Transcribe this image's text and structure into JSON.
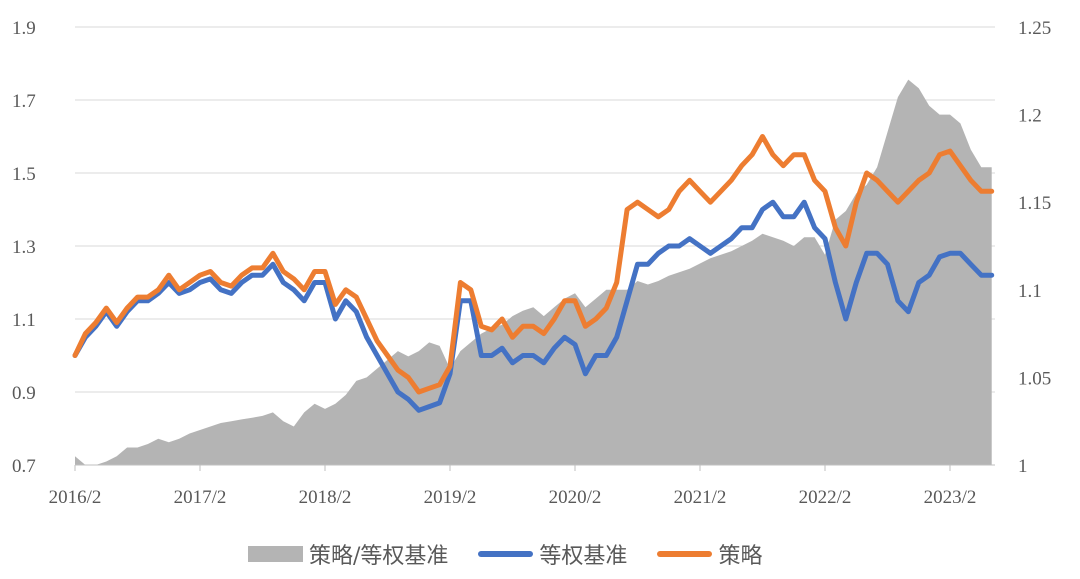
{
  "chart_data": {
    "type": "line",
    "title": "",
    "x_tick_labels": [
      "2016/2",
      "2017/2",
      "2018/2",
      "2019/2",
      "2020/2",
      "2021/2",
      "2022/2",
      "2023/2"
    ],
    "y_left": {
      "ticks": [
        "0.7",
        "0.9",
        "1.1",
        "1.3",
        "1.5",
        "1.7",
        "1.9"
      ],
      "range": [
        0.7,
        1.9
      ]
    },
    "y_right": {
      "ticks": [
        "1",
        "1.05",
        "1.1",
        "1.15",
        "1.2",
        "1.25"
      ],
      "range": [
        1.0,
        1.25
      ]
    },
    "x_start": "2016/2",
    "x_step": "month",
    "grid": "horizontal",
    "legend_position": "bottom",
    "colors": {
      "ratio": "#b4b4b4",
      "benchmark": "#4472c4",
      "strategy": "#ed7d31"
    },
    "series": [
      {
        "name": "策略/等权基准",
        "axis": "right",
        "kind": "area",
        "values": [
          1.005,
          1.0,
          1.0,
          1.002,
          1.005,
          1.01,
          1.01,
          1.012,
          1.015,
          1.013,
          1.015,
          1.018,
          1.02,
          1.022,
          1.024,
          1.025,
          1.026,
          1.027,
          1.028,
          1.03,
          1.025,
          1.022,
          1.03,
          1.035,
          1.032,
          1.035,
          1.04,
          1.048,
          1.05,
          1.055,
          1.06,
          1.065,
          1.062,
          1.065,
          1.07,
          1.068,
          1.055,
          1.065,
          1.07,
          1.075,
          1.078,
          1.08,
          1.085,
          1.088,
          1.09,
          1.085,
          1.09,
          1.095,
          1.098,
          1.09,
          1.095,
          1.1,
          1.1,
          1.1,
          1.105,
          1.103,
          1.105,
          1.108,
          1.11,
          1.112,
          1.115,
          1.118,
          1.12,
          1.122,
          1.125,
          1.128,
          1.132,
          1.13,
          1.128,
          1.125,
          1.13,
          1.13,
          1.12,
          1.14,
          1.145,
          1.155,
          1.16,
          1.17,
          1.19,
          1.21,
          1.22,
          1.215,
          1.205,
          1.2,
          1.2,
          1.195,
          1.18,
          1.17,
          1.17
        ]
      },
      {
        "name": "等权基准",
        "axis": "left",
        "kind": "line",
        "values": [
          1.0,
          1.05,
          1.08,
          1.12,
          1.08,
          1.12,
          1.15,
          1.15,
          1.17,
          1.2,
          1.17,
          1.18,
          1.2,
          1.21,
          1.18,
          1.17,
          1.2,
          1.22,
          1.22,
          1.25,
          1.2,
          1.18,
          1.15,
          1.2,
          1.2,
          1.1,
          1.15,
          1.12,
          1.05,
          1.0,
          0.95,
          0.9,
          0.88,
          0.85,
          0.86,
          0.87,
          0.95,
          1.15,
          1.15,
          1.0,
          1.0,
          1.02,
          0.98,
          1.0,
          1.0,
          0.98,
          1.02,
          1.05,
          1.03,
          0.95,
          1.0,
          1.0,
          1.05,
          1.15,
          1.25,
          1.25,
          1.28,
          1.3,
          1.3,
          1.32,
          1.3,
          1.28,
          1.3,
          1.32,
          1.35,
          1.35,
          1.4,
          1.42,
          1.38,
          1.38,
          1.42,
          1.35,
          1.32,
          1.2,
          1.1,
          1.2,
          1.28,
          1.28,
          1.25,
          1.15,
          1.12,
          1.2,
          1.22,
          1.27,
          1.28,
          1.28,
          1.25,
          1.22,
          1.22
        ]
      },
      {
        "name": "策略",
        "axis": "left",
        "kind": "line",
        "values": [
          1.0,
          1.06,
          1.09,
          1.13,
          1.09,
          1.13,
          1.16,
          1.16,
          1.18,
          1.22,
          1.18,
          1.2,
          1.22,
          1.23,
          1.2,
          1.19,
          1.22,
          1.24,
          1.24,
          1.28,
          1.23,
          1.21,
          1.18,
          1.23,
          1.23,
          1.14,
          1.18,
          1.16,
          1.1,
          1.04,
          1.0,
          0.96,
          0.94,
          0.9,
          0.91,
          0.92,
          0.97,
          1.2,
          1.18,
          1.08,
          1.07,
          1.1,
          1.05,
          1.08,
          1.08,
          1.06,
          1.1,
          1.15,
          1.15,
          1.08,
          1.1,
          1.13,
          1.2,
          1.4,
          1.42,
          1.4,
          1.38,
          1.4,
          1.45,
          1.48,
          1.45,
          1.42,
          1.45,
          1.48,
          1.52,
          1.55,
          1.6,
          1.55,
          1.52,
          1.55,
          1.55,
          1.48,
          1.45,
          1.35,
          1.3,
          1.42,
          1.5,
          1.48,
          1.45,
          1.42,
          1.45,
          1.48,
          1.5,
          1.55,
          1.56,
          1.52,
          1.48,
          1.45,
          1.45
        ]
      }
    ]
  }
}
